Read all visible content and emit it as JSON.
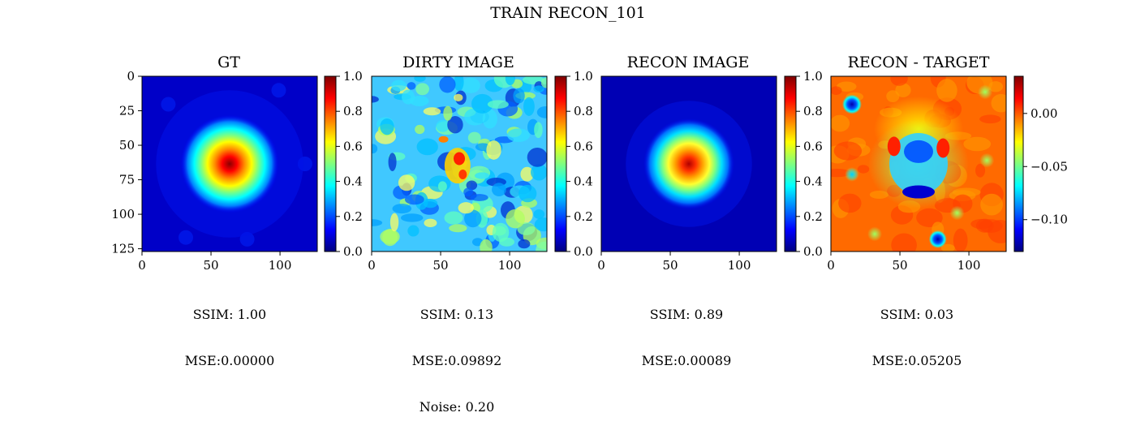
{
  "figure": {
    "title": "TRAIN RECON_101"
  },
  "colormap": [
    "#00007f",
    "#0000ff",
    "#007fff",
    "#00ffff",
    "#7fff7f",
    "#ffff00",
    "#ff7f00",
    "#ff0000",
    "#7f0000"
  ],
  "panels": [
    {
      "title": "GT",
      "metrics": [
        "SSIM: 1.00",
        "MSE:0.00000"
      ],
      "image_x_ticks": [
        0,
        50,
        100
      ],
      "image_y_ticks": [
        0,
        25,
        50,
        75,
        100,
        125
      ],
      "colorbar": {
        "range": [
          0.0,
          1.0
        ],
        "ticks": [
          "0.0",
          "0.2",
          "0.4",
          "0.6",
          "0.8",
          "1.0"
        ]
      }
    },
    {
      "title": "DIRTY IMAGE",
      "metrics": [
        "SSIM: 0.13",
        "MSE:0.09892",
        "Noise: 0.20"
      ],
      "image_x_ticks": [
        0,
        50,
        100
      ],
      "colorbar": {
        "range": [
          0.0,
          1.0
        ],
        "ticks": [
          "0.0",
          "0.2",
          "0.4",
          "0.6",
          "0.8",
          "1.0"
        ]
      }
    },
    {
      "title": "RECON IMAGE",
      "metrics": [
        "SSIM: 0.89",
        "MSE:0.00089"
      ],
      "image_x_ticks": [
        0,
        50,
        100
      ],
      "colorbar": {
        "range": [
          0.0,
          1.0
        ],
        "ticks": [
          "0.0",
          "0.2",
          "0.4",
          "0.6",
          "0.8",
          "1.0"
        ]
      }
    },
    {
      "title": "RECON - TARGET",
      "metrics": [
        "SSIM: 0.03",
        "MSE:0.05205"
      ],
      "image_x_ticks": [
        0,
        50,
        100
      ],
      "colorbar": {
        "range": [
          -0.13,
          0.035
        ],
        "ticks": [
          "0.00",
          "−0.05",
          "−0.10"
        ],
        "tick_values": [
          0.0,
          -0.05,
          -0.1
        ]
      }
    }
  ],
  "chart_data": [
    {
      "type": "heatmap",
      "title": "GT",
      "xlim": [
        0,
        127
      ],
      "ylim": [
        127,
        0
      ],
      "value_range": [
        0.0,
        1.0
      ],
      "features": [
        {
          "kind": "gaussian_peak",
          "center": [
            64,
            64
          ],
          "peak_value": 1.0
        }
      ]
    },
    {
      "type": "heatmap",
      "title": "DIRTY IMAGE",
      "xlim": [
        0,
        127
      ],
      "ylim": [
        127,
        0
      ],
      "value_range": [
        0.0,
        1.0
      ],
      "features": [
        {
          "kind": "noise_speckle",
          "mean_value": 0.4
        },
        {
          "kind": "peak",
          "center": [
            63,
            56
          ],
          "peak_value": 1.0
        }
      ]
    },
    {
      "type": "heatmap",
      "title": "RECON IMAGE",
      "xlim": [
        0,
        127
      ],
      "ylim": [
        127,
        0
      ],
      "value_range": [
        0.0,
        1.0
      ],
      "features": [
        {
          "kind": "gaussian_peak",
          "center": [
            64,
            64
          ],
          "peak_value": 0.95
        }
      ]
    },
    {
      "type": "heatmap",
      "title": "RECON - TARGET",
      "xlim": [
        0,
        127
      ],
      "ylim": [
        127,
        0
      ],
      "value_range": [
        -0.13,
        0.035
      ],
      "features": [
        {
          "kind": "ring_residual",
          "center": [
            64,
            64
          ],
          "min_value": -0.1
        },
        {
          "kind": "spot",
          "center": [
            15,
            20
          ],
          "value": -0.12
        },
        {
          "kind": "spot",
          "center": [
            78,
            120
          ],
          "value": -0.1
        }
      ]
    }
  ]
}
